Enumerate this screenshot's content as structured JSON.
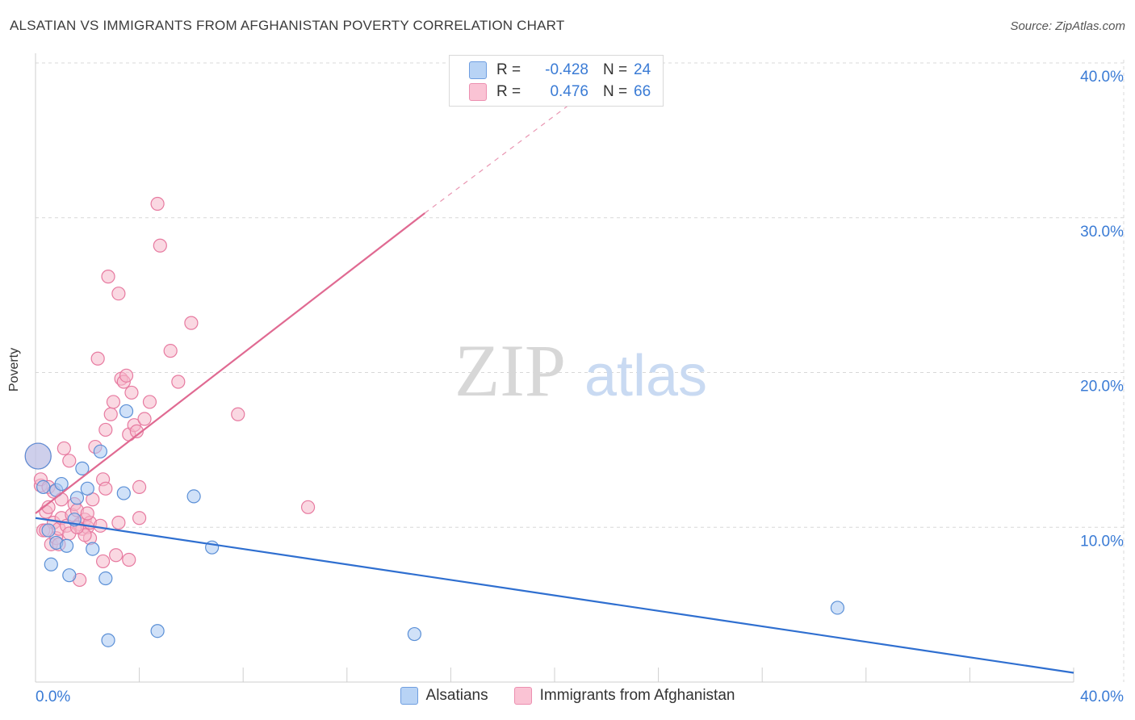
{
  "title": "ALSATIAN VS IMMIGRANTS FROM AFGHANISTAN POVERTY CORRELATION CHART",
  "source": "Source: ZipAtlas.com",
  "watermark": {
    "zip": "ZIP",
    "atlas": "atlas"
  },
  "legend": {
    "rows": [
      {
        "r_label": "R =",
        "r_value": "-0.428",
        "n_label": "N =",
        "n_value": "24"
      },
      {
        "r_label": "R =",
        "r_value": "0.476",
        "n_label": "N =",
        "n_value": "66"
      }
    ]
  },
  "bottom_legend": {
    "series1": "Alsatians",
    "series2": "Immigrants from Afghanistan"
  },
  "colors": {
    "blue_fill": "#a9c9f2",
    "blue_stroke": "#5a8fd6",
    "blue_line": "#2f6fd0",
    "pink_fill": "#f6b8cb",
    "pink_stroke": "#e77aa0",
    "pink_line": "#e06a92",
    "axis_text": "#3a7bd5",
    "grid": "#d8d8d8"
  },
  "chart_data": {
    "type": "scatter",
    "title": "ALSATIAN VS IMMIGRANTS FROM AFGHANISTAN POVERTY CORRELATION CHART",
    "xlabel": "",
    "ylabel": "Poverty",
    "xlim": [
      0,
      40
    ],
    "ylim": [
      0,
      40
    ],
    "x_tick_labels": [
      "0.0%",
      "40.0%"
    ],
    "y_ticks": [
      10,
      20,
      30,
      40
    ],
    "y_tick_labels": [
      "10.0%",
      "20.0%",
      "30.0%",
      "40.0%"
    ],
    "grid": true,
    "series": [
      {
        "name": "Alsatians",
        "r": -0.428,
        "n": 24,
        "points": [
          [
            0.1,
            14.6,
            "big"
          ],
          [
            0.3,
            12.6
          ],
          [
            0.5,
            9.8
          ],
          [
            0.6,
            7.6
          ],
          [
            0.8,
            9.0
          ],
          [
            0.8,
            12.4
          ],
          [
            1.0,
            12.8
          ],
          [
            1.2,
            8.8
          ],
          [
            1.3,
            6.9
          ],
          [
            1.6,
            11.9
          ],
          [
            1.8,
            13.8
          ],
          [
            2.0,
            12.5
          ],
          [
            2.2,
            8.6
          ],
          [
            2.5,
            14.9
          ],
          [
            2.7,
            6.7
          ],
          [
            2.8,
            2.7
          ],
          [
            3.4,
            12.2
          ],
          [
            3.5,
            17.5
          ],
          [
            4.7,
            3.3
          ],
          [
            6.1,
            12.0
          ],
          [
            6.8,
            8.7
          ],
          [
            14.6,
            3.1
          ],
          [
            30.9,
            4.8
          ],
          [
            1.5,
            10.5
          ]
        ],
        "trend": {
          "x": [
            0,
            40
          ],
          "y": [
            10.6,
            0.6
          ]
        }
      },
      {
        "name": "Immigrants from Afghanistan",
        "r": 0.476,
        "n": 66,
        "points": [
          [
            0.1,
            14.6,
            "big"
          ],
          [
            0.2,
            12.7
          ],
          [
            0.2,
            13.1
          ],
          [
            0.3,
            9.8
          ],
          [
            0.4,
            11.0
          ],
          [
            0.5,
            12.6
          ],
          [
            0.5,
            11.3
          ],
          [
            0.6,
            8.9
          ],
          [
            0.7,
            12.3
          ],
          [
            0.7,
            10.3
          ],
          [
            0.8,
            9.3
          ],
          [
            0.9,
            9.9
          ],
          [
            1.0,
            10.6
          ],
          [
            1.0,
            11.8
          ],
          [
            1.1,
            15.1
          ],
          [
            1.2,
            10.1
          ],
          [
            1.3,
            9.6
          ],
          [
            1.3,
            14.3
          ],
          [
            1.4,
            10.8
          ],
          [
            1.5,
            11.5
          ],
          [
            1.6,
            11.1
          ],
          [
            1.7,
            10.2
          ],
          [
            1.8,
            9.9
          ],
          [
            1.9,
            10.5
          ],
          [
            2.0,
            10.0
          ],
          [
            2.1,
            10.3
          ],
          [
            2.1,
            9.3
          ],
          [
            2.2,
            11.8
          ],
          [
            2.3,
            15.2
          ],
          [
            2.4,
            20.9
          ],
          [
            2.5,
            10.1
          ],
          [
            2.6,
            7.8
          ],
          [
            2.6,
            13.1
          ],
          [
            2.7,
            12.5
          ],
          [
            2.7,
            16.3
          ],
          [
            2.8,
            26.2
          ],
          [
            2.9,
            17.3
          ],
          [
            3.0,
            18.1
          ],
          [
            3.1,
            8.2
          ],
          [
            3.2,
            10.3
          ],
          [
            3.2,
            25.1
          ],
          [
            3.3,
            19.6
          ],
          [
            3.4,
            19.4
          ],
          [
            3.5,
            19.8
          ],
          [
            3.6,
            16.0
          ],
          [
            3.6,
            7.9
          ],
          [
            3.7,
            18.7
          ],
          [
            3.8,
            16.6
          ],
          [
            3.9,
            16.2
          ],
          [
            4.0,
            12.6
          ],
          [
            4.0,
            10.6
          ],
          [
            4.2,
            17.0
          ],
          [
            4.4,
            18.1
          ],
          [
            4.7,
            30.9
          ],
          [
            4.8,
            28.2
          ],
          [
            5.2,
            21.4
          ],
          [
            5.5,
            19.4
          ],
          [
            6.0,
            23.2
          ],
          [
            7.8,
            17.3
          ],
          [
            10.5,
            11.3
          ],
          [
            1.7,
            6.6
          ],
          [
            0.9,
            8.9
          ],
          [
            1.9,
            9.5
          ],
          [
            0.4,
            9.8
          ],
          [
            1.6,
            10.0
          ],
          [
            2.0,
            10.9
          ]
        ],
        "trend": {
          "x": [
            0,
            15
          ],
          "y": [
            10.9,
            30.3
          ]
        },
        "trend_dashed": {
          "x": [
            15,
            21.2
          ],
          "y": [
            30.3,
            38.1
          ]
        }
      }
    ]
  }
}
